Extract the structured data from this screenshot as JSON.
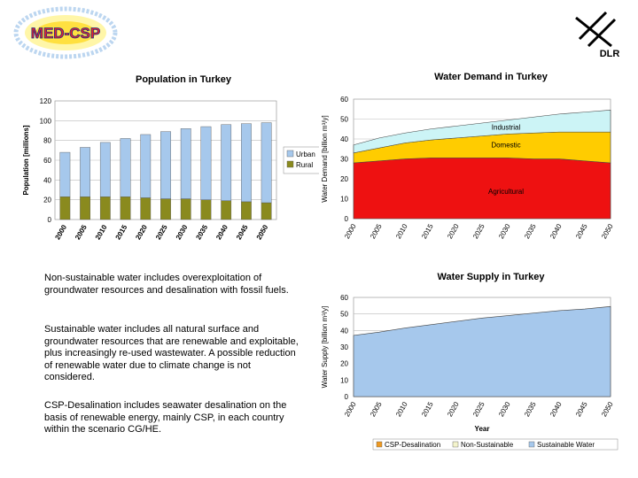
{
  "logos": {
    "left_text": "MED-CSP",
    "right_text": "DLR"
  },
  "paragraphs": {
    "p1": "Non-sustainable water includes overexploitation of groundwater resources and desalination with fossil fuels.",
    "p2": "Sustainable water includes all natural surface and groundwater resources that are renewable and exploitable, plus increasingly re-used wastewater. A possible reduction of renewable water due to climate change is not considered.",
    "p3": "CSP-Desalination includes seawater desalination on the basis of renewable energy, mainly CSP, in each country within the scenario CG/HE."
  },
  "colors": {
    "urban": "#a6c8ec",
    "rural": "#8a8a1e",
    "industrial": "#ccf4f6",
    "domestic": "#ffcc00",
    "agricultural": "#ee1111",
    "sustainable": "#a6c8ec",
    "csp": "#ee9922",
    "nonsustainable": "#f4f4cc",
    "grid": "#bbbbbb"
  },
  "chart_data": [
    {
      "type": "bar",
      "title": "Population in Turkey",
      "ylabel": "Population [millions]",
      "xlabel": "",
      "ylim": [
        0,
        120
      ],
      "yticks": [
        0,
        20,
        40,
        60,
        80,
        100,
        120
      ],
      "categories": [
        "2000",
        "2005",
        "2010",
        "2015",
        "2020",
        "2025",
        "2030",
        "2035",
        "2040",
        "2045",
        "2050"
      ],
      "stacked": true,
      "series": [
        {
          "name": "Rural",
          "values": [
            23,
            23,
            23,
            23,
            22,
            21,
            21,
            20,
            19,
            18,
            17
          ]
        },
        {
          "name": "Urban",
          "values": [
            45,
            50,
            55,
            59,
            64,
            68,
            71,
            74,
            77,
            79,
            81
          ]
        }
      ],
      "legend": [
        "Urban",
        "Rural"
      ],
      "legend_position": "right"
    },
    {
      "type": "area",
      "title": "Water Demand in Turkey",
      "ylabel": "Water Demand [billion m³/y]",
      "xlabel": "",
      "ylim": [
        0,
        60
      ],
      "yticks": [
        0,
        10,
        20,
        30,
        40,
        50,
        60
      ],
      "x": [
        "2000",
        "2005",
        "2010",
        "2015",
        "2020",
        "2025",
        "2030",
        "2035",
        "2040",
        "2045",
        "2050"
      ],
      "stacked": true,
      "series": [
        {
          "name": "Agricultural",
          "values": [
            28,
            29,
            30,
            30.5,
            30.5,
            30.5,
            30.5,
            30,
            30,
            29,
            28
          ]
        },
        {
          "name": "Domestic",
          "values": [
            5,
            6.5,
            8,
            9,
            10,
            11,
            12,
            13,
            13.5,
            14.5,
            15.5
          ]
        },
        {
          "name": "Industrial",
          "values": [
            4,
            5,
            5,
            5.5,
            6,
            6.5,
            7,
            8,
            9,
            10,
            11
          ]
        }
      ],
      "annotations": [
        "Industrial",
        "Domestic",
        "Agricultural"
      ]
    },
    {
      "type": "area",
      "title": "Water Supply in Turkey",
      "ylabel": "Water Supply [billion m³/y]",
      "xlabel": "Year",
      "ylim": [
        0,
        60
      ],
      "yticks": [
        0,
        10,
        20,
        30,
        40,
        50,
        60
      ],
      "x": [
        "2000",
        "2005",
        "2010",
        "2015",
        "2020",
        "2025",
        "2030",
        "2035",
        "2040",
        "2045",
        "2050"
      ],
      "stacked": true,
      "series": [
        {
          "name": "CSP-Desalination",
          "values": [
            0,
            0,
            0,
            0,
            0,
            0,
            0,
            0,
            0,
            0,
            0
          ]
        },
        {
          "name": "Non-Sustainable",
          "values": [
            0,
            0,
            0,
            0,
            0,
            0,
            0,
            0,
            0,
            0,
            0
          ]
        },
        {
          "name": "Sustainable Water",
          "values": [
            37,
            39,
            41.5,
            43.5,
            45.5,
            47.5,
            49,
            50.5,
            52,
            53,
            54.5
          ]
        }
      ],
      "legend": [
        "CSP-Desalination",
        "Non-Sustainable",
        "Sustainable Water"
      ],
      "legend_position": "bottom"
    }
  ]
}
